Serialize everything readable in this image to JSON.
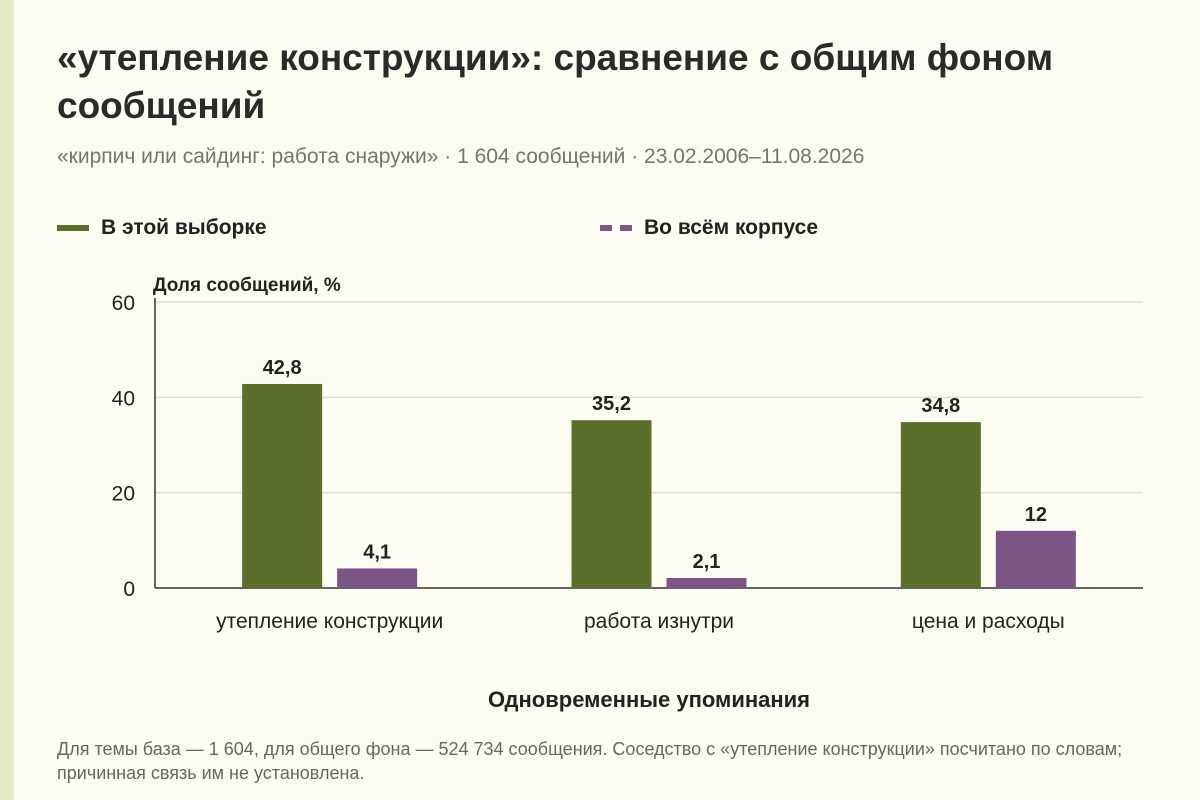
{
  "title": "«утепление конструкции»: сравнение с общим фоном сообщений",
  "subtitle": "«кирпич или сайдинг: работа снаружи» · 1 604 сообщений · 23.02.2006–11.08.2026",
  "footnote": "Для темы база — 1 604, для общего фона — 524 734 сообщения. Соседство с «утепление конструкции» посчитано по словам; причинная связь им не установлена.",
  "colors": {
    "sample": "#5b6e2b",
    "corpus": "#7b5585",
    "grid": "#e0dfd4",
    "axis": "#333333"
  },
  "chart_data": {
    "type": "bar",
    "title": "«утепление конструкции»: сравнение с общим фоном сообщений",
    "ylabel": "Доля сообщений, %",
    "xlabel": "Одновременные упоминания",
    "ylim": [
      0,
      60
    ],
    "yticks": [
      0,
      20,
      40,
      60
    ],
    "grid": true,
    "legend_position": "top",
    "categories": [
      "утепление конструкции",
      "работа изнутри",
      "цена и расходы"
    ],
    "series": [
      {
        "name": "В этой выборке",
        "values": [
          42.8,
          35.2,
          34.8
        ],
        "labels": [
          "42,8",
          "35,2",
          "34,8"
        ]
      },
      {
        "name": "Во всём корпусе",
        "values": [
          4.1,
          2.1,
          12
        ],
        "labels": [
          "4,1",
          "2,1",
          "12"
        ]
      }
    ]
  }
}
